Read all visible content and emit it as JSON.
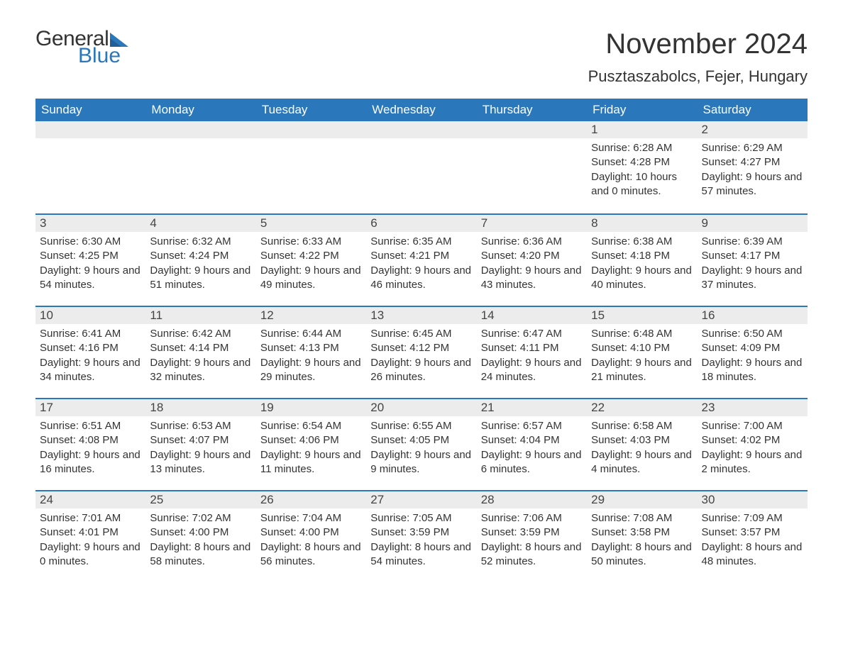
{
  "brand": {
    "part1": "General",
    "part2": "Blue",
    "text_color": "#333333",
    "accent_color": "#2a77bb"
  },
  "header": {
    "title": "November 2024",
    "location": "Pusztaszabolcs, Fejer, Hungary"
  },
  "style": {
    "header_bg": "#2a77bb",
    "header_fg": "#ffffff",
    "daynum_bg": "#ececec",
    "cell_border_top": "#2a77bb",
    "title_fontsize": 40,
    "location_fontsize": 22,
    "dow_fontsize": 17,
    "body_fontsize": 15,
    "page_bg": "#ffffff"
  },
  "days_of_week": [
    "Sunday",
    "Monday",
    "Tuesday",
    "Wednesday",
    "Thursday",
    "Friday",
    "Saturday"
  ],
  "weeks": [
    [
      null,
      null,
      null,
      null,
      null,
      {
        "n": "1",
        "sr": "Sunrise: 6:28 AM",
        "ss": "Sunset: 4:28 PM",
        "dl": "Daylight: 10 hours and 0 minutes."
      },
      {
        "n": "2",
        "sr": "Sunrise: 6:29 AM",
        "ss": "Sunset: 4:27 PM",
        "dl": "Daylight: 9 hours and 57 minutes."
      }
    ],
    [
      {
        "n": "3",
        "sr": "Sunrise: 6:30 AM",
        "ss": "Sunset: 4:25 PM",
        "dl": "Daylight: 9 hours and 54 minutes."
      },
      {
        "n": "4",
        "sr": "Sunrise: 6:32 AM",
        "ss": "Sunset: 4:24 PM",
        "dl": "Daylight: 9 hours and 51 minutes."
      },
      {
        "n": "5",
        "sr": "Sunrise: 6:33 AM",
        "ss": "Sunset: 4:22 PM",
        "dl": "Daylight: 9 hours and 49 minutes."
      },
      {
        "n": "6",
        "sr": "Sunrise: 6:35 AM",
        "ss": "Sunset: 4:21 PM",
        "dl": "Daylight: 9 hours and 46 minutes."
      },
      {
        "n": "7",
        "sr": "Sunrise: 6:36 AM",
        "ss": "Sunset: 4:20 PM",
        "dl": "Daylight: 9 hours and 43 minutes."
      },
      {
        "n": "8",
        "sr": "Sunrise: 6:38 AM",
        "ss": "Sunset: 4:18 PM",
        "dl": "Daylight: 9 hours and 40 minutes."
      },
      {
        "n": "9",
        "sr": "Sunrise: 6:39 AM",
        "ss": "Sunset: 4:17 PM",
        "dl": "Daylight: 9 hours and 37 minutes."
      }
    ],
    [
      {
        "n": "10",
        "sr": "Sunrise: 6:41 AM",
        "ss": "Sunset: 4:16 PM",
        "dl": "Daylight: 9 hours and 34 minutes."
      },
      {
        "n": "11",
        "sr": "Sunrise: 6:42 AM",
        "ss": "Sunset: 4:14 PM",
        "dl": "Daylight: 9 hours and 32 minutes."
      },
      {
        "n": "12",
        "sr": "Sunrise: 6:44 AM",
        "ss": "Sunset: 4:13 PM",
        "dl": "Daylight: 9 hours and 29 minutes."
      },
      {
        "n": "13",
        "sr": "Sunrise: 6:45 AM",
        "ss": "Sunset: 4:12 PM",
        "dl": "Daylight: 9 hours and 26 minutes."
      },
      {
        "n": "14",
        "sr": "Sunrise: 6:47 AM",
        "ss": "Sunset: 4:11 PM",
        "dl": "Daylight: 9 hours and 24 minutes."
      },
      {
        "n": "15",
        "sr": "Sunrise: 6:48 AM",
        "ss": "Sunset: 4:10 PM",
        "dl": "Daylight: 9 hours and 21 minutes."
      },
      {
        "n": "16",
        "sr": "Sunrise: 6:50 AM",
        "ss": "Sunset: 4:09 PM",
        "dl": "Daylight: 9 hours and 18 minutes."
      }
    ],
    [
      {
        "n": "17",
        "sr": "Sunrise: 6:51 AM",
        "ss": "Sunset: 4:08 PM",
        "dl": "Daylight: 9 hours and 16 minutes."
      },
      {
        "n": "18",
        "sr": "Sunrise: 6:53 AM",
        "ss": "Sunset: 4:07 PM",
        "dl": "Daylight: 9 hours and 13 minutes."
      },
      {
        "n": "19",
        "sr": "Sunrise: 6:54 AM",
        "ss": "Sunset: 4:06 PM",
        "dl": "Daylight: 9 hours and 11 minutes."
      },
      {
        "n": "20",
        "sr": "Sunrise: 6:55 AM",
        "ss": "Sunset: 4:05 PM",
        "dl": "Daylight: 9 hours and 9 minutes."
      },
      {
        "n": "21",
        "sr": "Sunrise: 6:57 AM",
        "ss": "Sunset: 4:04 PM",
        "dl": "Daylight: 9 hours and 6 minutes."
      },
      {
        "n": "22",
        "sr": "Sunrise: 6:58 AM",
        "ss": "Sunset: 4:03 PM",
        "dl": "Daylight: 9 hours and 4 minutes."
      },
      {
        "n": "23",
        "sr": "Sunrise: 7:00 AM",
        "ss": "Sunset: 4:02 PM",
        "dl": "Daylight: 9 hours and 2 minutes."
      }
    ],
    [
      {
        "n": "24",
        "sr": "Sunrise: 7:01 AM",
        "ss": "Sunset: 4:01 PM",
        "dl": "Daylight: 9 hours and 0 minutes."
      },
      {
        "n": "25",
        "sr": "Sunrise: 7:02 AM",
        "ss": "Sunset: 4:00 PM",
        "dl": "Daylight: 8 hours and 58 minutes."
      },
      {
        "n": "26",
        "sr": "Sunrise: 7:04 AM",
        "ss": "Sunset: 4:00 PM",
        "dl": "Daylight: 8 hours and 56 minutes."
      },
      {
        "n": "27",
        "sr": "Sunrise: 7:05 AM",
        "ss": "Sunset: 3:59 PM",
        "dl": "Daylight: 8 hours and 54 minutes."
      },
      {
        "n": "28",
        "sr": "Sunrise: 7:06 AM",
        "ss": "Sunset: 3:59 PM",
        "dl": "Daylight: 8 hours and 52 minutes."
      },
      {
        "n": "29",
        "sr": "Sunrise: 7:08 AM",
        "ss": "Sunset: 3:58 PM",
        "dl": "Daylight: 8 hours and 50 minutes."
      },
      {
        "n": "30",
        "sr": "Sunrise: 7:09 AM",
        "ss": "Sunset: 3:57 PM",
        "dl": "Daylight: 8 hours and 48 minutes."
      }
    ]
  ]
}
